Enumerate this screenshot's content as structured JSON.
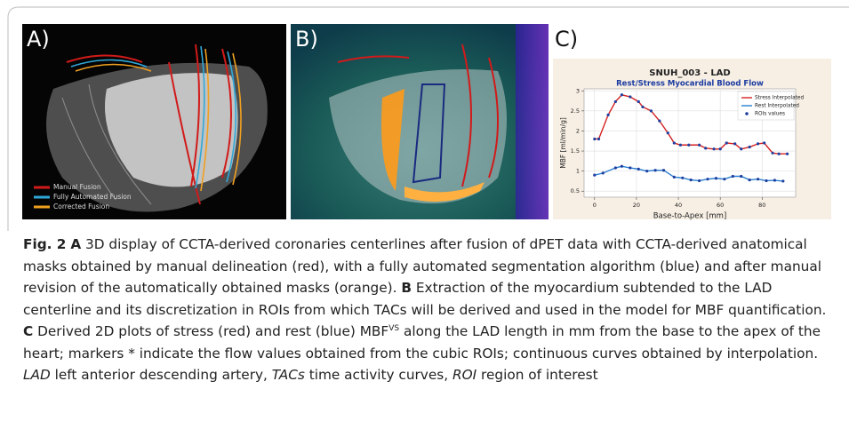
{
  "panel_labels": [
    "A)",
    "B)",
    "C)"
  ],
  "panel_a_legend": [
    {
      "name": "Manual Fusion",
      "color": "#d11a1a"
    },
    {
      "name": "Fully Automated Fusion",
      "color": "#2fa8d8"
    },
    {
      "name": "Corrected Fusion",
      "color": "#f0a020"
    }
  ],
  "chart_data": {
    "type": "line",
    "title": "SNUH_003  -  LAD",
    "subtitle": "Rest/Stress Myocardial Blood Flow",
    "x_label": "Base-to-Apex [mm]",
    "y_label": "MBF [ml/min/g]",
    "xlim": [
      -5,
      96
    ],
    "xticks": [
      0,
      20,
      40,
      60,
      80
    ],
    "ylim": [
      0.35,
      3.05
    ],
    "yticks": [
      0.5,
      1.0,
      1.5,
      2.0,
      2.5,
      3.0
    ],
    "grid": true,
    "marker_label": "ROIs values",
    "marker_color": "#1f3fa0",
    "series": [
      {
        "name": "Stress Interpolated",
        "color": "#d42020",
        "x": [
          0,
          2,
          6.5,
          10,
          13,
          17,
          21,
          23,
          27,
          31,
          35,
          38,
          41,
          45,
          50,
          53,
          57,
          60,
          63,
          67,
          70,
          74,
          78,
          81,
          85,
          88,
          92
        ],
        "values": [
          1.8,
          1.8,
          2.4,
          2.73,
          2.9,
          2.85,
          2.73,
          2.6,
          2.5,
          2.25,
          1.95,
          1.7,
          1.65,
          1.65,
          1.65,
          1.57,
          1.55,
          1.55,
          1.7,
          1.68,
          1.55,
          1.6,
          1.68,
          1.7,
          1.45,
          1.43,
          1.43
        ]
      },
      {
        "name": "Rest Interpolated",
        "color": "#2a7fd0",
        "x": [
          0,
          4,
          10,
          13,
          17,
          21,
          25,
          29,
          33,
          38,
          42,
          46,
          50,
          54,
          58,
          62,
          66,
          70,
          74,
          78,
          82,
          86,
          90
        ],
        "values": [
          0.9,
          0.95,
          1.08,
          1.12,
          1.08,
          1.05,
          1.0,
          1.02,
          1.02,
          0.85,
          0.83,
          0.78,
          0.76,
          0.8,
          0.82,
          0.8,
          0.87,
          0.87,
          0.78,
          0.8,
          0.76,
          0.77,
          0.75
        ]
      }
    ]
  },
  "caption": {
    "label": "Fig. 2",
    "parts": [
      "A",
      "3D display of CCTA-derived coronaries centerlines after fusion of dPET data with CCTA-derived anatomical masks obtained by manual delineation (red), with a fully automated segmentation algorithm (blue) and after manual revision of the automatically obtained masks (orange).",
      "B",
      "Extraction of the myocardium subtended to the LAD centerline and its discretization in ROIs from which TACs will be derived and used in the model for MBF quantification.",
      "C",
      "Derived 2D plots of stress (red) and rest (blue) MBF",
      "VS",
      "along the LAD length in mm from the base to the apex of the heart; markers * indicate the flow values obtained from the cubic ROIs; continuous curves obtained by interpolation.",
      "LAD",
      "left anterior descending artery,",
      "TACs",
      "time activity curves,",
      "ROI",
      "region of interest"
    ]
  }
}
